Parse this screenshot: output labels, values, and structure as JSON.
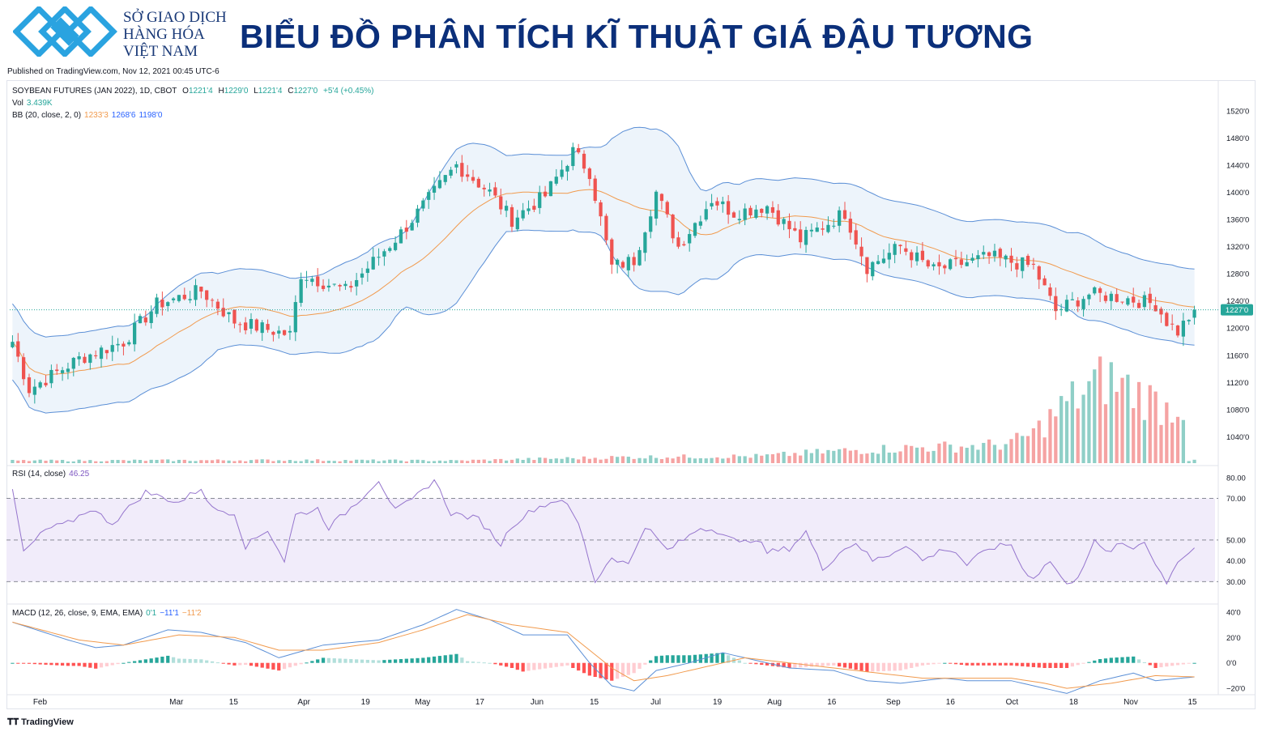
{
  "header": {
    "org_lines": "SỞ GIAO DỊCH\nHÀNG HÓA\nVIỆT NAM",
    "title": "BIỂU ĐỒ PHÂN TÍCH KĨ THUẬT GIÁ ĐẬU TƯƠNG",
    "published": "Published on TradingView.com, Nov 12, 2021 00:45 UTC-6"
  },
  "legend": {
    "symbol": "SOYBEAN FUTURES (JAN 2022), 1D, CBOT",
    "o_label": "O",
    "o_value": "1221'4",
    "h_label": "H",
    "h_value": "1229'0",
    "l_label": "L",
    "l_value": "1221'4",
    "c_label": "C",
    "c_value": "1227'0",
    "change": "+5'4 (+0.45%)",
    "vol_label": "Vol",
    "vol_value": "3.439K",
    "bb_label": "BB (20, close, 2, 0)",
    "bb_basis": "1233'3",
    "bb_upper": "1268'6",
    "bb_lower": "1198'0",
    "rsi_label": "RSI (14, close)",
    "rsi_value": "46.25",
    "macd_label": "MACD (12, 26, close, 9, EMA, EMA)",
    "macd_hist": "0'1",
    "macd_line": "−11'1",
    "macd_signal": "−11'2"
  },
  "footer": {
    "brand": "TradingView",
    "icon": "tradingview-logo-icon"
  },
  "colors": {
    "up": "#26a69a",
    "down": "#ef5350",
    "vol_up": "#8fcfc7",
    "vol_down": "#f5a3a3",
    "bb_band": "#5b8fd6",
    "bb_basis": "#f19a4d",
    "bb_fill": "#edf4fb",
    "rsi": "#9575cd",
    "rsi_fill": "#f1ecfa",
    "macd": "#5b8fd6",
    "signal": "#f19a4d",
    "title": "#0b2f7a",
    "logo": "#2aa3e0"
  },
  "chart_data": {
    "type": "candlestick",
    "symbol": "SOYBEAN FUTURES (JAN 2022)",
    "timeframe": "1D",
    "exchange": "CBOT",
    "x_tick_labels": [
      "Feb",
      "Mar",
      "15",
      "Apr",
      "19",
      "May",
      "17",
      "Jun",
      "15",
      "Jul",
      "19",
      "Aug",
      "16",
      "Sep",
      "16",
      "Oct",
      "18",
      "Nov",
      "15"
    ],
    "price_axis": {
      "range": [
        1000,
        1540
      ],
      "ticks": [
        1520,
        1480,
        1440,
        1400,
        1360,
        1320,
        1280,
        1240,
        1200,
        1160,
        1120,
        1080,
        1040
      ],
      "tick_labels": [
        "1520'0",
        "1480'0",
        "1440'0",
        "1400'0",
        "1360'0",
        "1320'0",
        "1280'0",
        "1240'0",
        "1200'0",
        "1160'0",
        "1120'0",
        "1080'0",
        "1040'0"
      ],
      "last_price": 1227,
      "last_price_label": "1227'0"
    },
    "price_keypoints": [
      [
        0,
        1180
      ],
      [
        3,
        1110
      ],
      [
        12,
        1155
      ],
      [
        20,
        1180
      ],
      [
        26,
        1235
      ],
      [
        34,
        1255
      ],
      [
        40,
        1210
      ],
      [
        50,
        1190
      ],
      [
        52,
        1280
      ],
      [
        60,
        1255
      ],
      [
        70,
        1340
      ],
      [
        80,
        1440
      ],
      [
        86,
        1400
      ],
      [
        90,
        1360
      ],
      [
        96,
        1395
      ],
      [
        101,
        1460
      ],
      [
        104,
        1430
      ],
      [
        108,
        1290
      ],
      [
        112,
        1300
      ],
      [
        116,
        1400
      ],
      [
        120,
        1320
      ],
      [
        126,
        1390
      ],
      [
        130,
        1370
      ],
      [
        136,
        1380
      ],
      [
        142,
        1330
      ],
      [
        150,
        1370
      ],
      [
        154,
        1290
      ],
      [
        160,
        1320
      ],
      [
        166,
        1285
      ],
      [
        176,
        1305
      ],
      [
        184,
        1290
      ],
      [
        188,
        1225
      ],
      [
        194,
        1250
      ],
      [
        200,
        1245
      ],
      [
        206,
        1235
      ],
      [
        208,
        1210
      ],
      [
        210,
        1195
      ],
      [
        213,
        1227
      ]
    ],
    "volume_keypoints": [
      [
        0,
        5000
      ],
      [
        50,
        6000
      ],
      [
        80,
        5000
      ],
      [
        110,
        12000
      ],
      [
        135,
        14000
      ],
      [
        150,
        25000
      ],
      [
        160,
        30000
      ],
      [
        175,
        35000
      ],
      [
        180,
        40000
      ],
      [
        184,
        60000
      ],
      [
        190,
        120000
      ],
      [
        197,
        170000
      ],
      [
        203,
        140000
      ],
      [
        208,
        110000
      ],
      [
        211,
        120000
      ],
      [
        212,
        5000
      ]
    ],
    "rsi": {
      "range": [
        20,
        85
      ],
      "ticks": [
        80,
        70,
        50,
        40,
        30
      ],
      "tick_labels": [
        "80.00",
        "70.00",
        "50.00",
        "40.00",
        "30.00"
      ],
      "levels": [
        70,
        50,
        30
      ],
      "last": 46.25,
      "keypoints": [
        [
          0,
          74
        ],
        [
          2,
          44
        ],
        [
          6,
          55
        ],
        [
          10,
          58
        ],
        [
          14,
          65
        ],
        [
          18,
          58
        ],
        [
          24,
          73
        ],
        [
          30,
          68
        ],
        [
          34,
          75
        ],
        [
          36,
          65
        ],
        [
          40,
          63
        ],
        [
          42,
          47
        ],
        [
          46,
          55
        ],
        [
          49,
          40
        ],
        [
          51,
          62
        ],
        [
          55,
          65
        ],
        [
          57,
          56
        ],
        [
          62,
          68
        ],
        [
          66,
          79
        ],
        [
          69,
          64
        ],
        [
          72,
          69
        ],
        [
          76,
          79
        ],
        [
          79,
          63
        ],
        [
          84,
          60
        ],
        [
          88,
          48
        ],
        [
          90,
          57
        ],
        [
          94,
          65
        ],
        [
          99,
          70
        ],
        [
          102,
          58
        ],
        [
          105,
          30
        ],
        [
          108,
          42
        ],
        [
          111,
          38
        ],
        [
          114,
          57
        ],
        [
          118,
          45
        ],
        [
          122,
          52
        ],
        [
          124,
          56
        ],
        [
          128,
          54
        ],
        [
          131,
          48
        ],
        [
          134,
          51
        ],
        [
          136,
          44
        ],
        [
          140,
          46
        ],
        [
          143,
          54
        ],
        [
          146,
          36
        ],
        [
          149,
          44
        ],
        [
          152,
          49
        ],
        [
          155,
          40
        ],
        [
          158,
          43
        ],
        [
          161,
          48
        ],
        [
          164,
          40
        ],
        [
          168,
          46
        ],
        [
          170,
          44
        ],
        [
          172,
          38
        ],
        [
          176,
          46
        ],
        [
          180,
          48
        ],
        [
          182,
          36
        ],
        [
          184,
          32
        ],
        [
          187,
          40
        ],
        [
          190,
          28
        ],
        [
          192,
          33
        ],
        [
          195,
          49
        ],
        [
          197,
          44
        ],
        [
          200,
          48
        ],
        [
          202,
          46
        ],
        [
          204,
          50
        ],
        [
          206,
          38
        ],
        [
          208,
          30
        ],
        [
          210,
          40
        ],
        [
          213,
          46
        ]
      ]
    },
    "macd": {
      "range": [
        -25,
        45
      ],
      "ticks": [
        40,
        20,
        0,
        -20
      ],
      "tick_labels": [
        "40'0",
        "20'0",
        "0'0",
        "−20'0"
      ],
      "line_keypoints": [
        [
          0,
          32
        ],
        [
          10,
          18
        ],
        [
          15,
          12
        ],
        [
          20,
          14
        ],
        [
          28,
          26
        ],
        [
          34,
          24
        ],
        [
          42,
          16
        ],
        [
          48,
          4
        ],
        [
          56,
          14
        ],
        [
          66,
          18
        ],
        [
          74,
          30
        ],
        [
          80,
          42
        ],
        [
          86,
          34
        ],
        [
          92,
          22
        ],
        [
          100,
          22
        ],
        [
          104,
          0
        ],
        [
          108,
          -18
        ],
        [
          112,
          -22
        ],
        [
          116,
          -6
        ],
        [
          122,
          0
        ],
        [
          128,
          8
        ],
        [
          134,
          2
        ],
        [
          140,
          -4
        ],
        [
          148,
          -6
        ],
        [
          154,
          -14
        ],
        [
          160,
          -16
        ],
        [
          168,
          -12
        ],
        [
          172,
          -14
        ],
        [
          180,
          -14
        ],
        [
          186,
          -20
        ],
        [
          190,
          -24
        ],
        [
          196,
          -14
        ],
        [
          202,
          -8
        ],
        [
          206,
          -14
        ],
        [
          213,
          -11
        ]
      ],
      "signal_keypoints": [
        [
          0,
          32
        ],
        [
          12,
          18
        ],
        [
          20,
          14
        ],
        [
          30,
          22
        ],
        [
          40,
          20
        ],
        [
          48,
          10
        ],
        [
          56,
          10
        ],
        [
          66,
          16
        ],
        [
          74,
          26
        ],
        [
          82,
          38
        ],
        [
          90,
          30
        ],
        [
          100,
          24
        ],
        [
          104,
          10
        ],
        [
          108,
          -4
        ],
        [
          112,
          -14
        ],
        [
          118,
          -10
        ],
        [
          126,
          -2
        ],
        [
          132,
          4
        ],
        [
          140,
          0
        ],
        [
          148,
          -4
        ],
        [
          156,
          -8
        ],
        [
          164,
          -12
        ],
        [
          172,
          -12
        ],
        [
          180,
          -12
        ],
        [
          186,
          -16
        ],
        [
          190,
          -20
        ],
        [
          198,
          -16
        ],
        [
          206,
          -10
        ],
        [
          213,
          -11
        ]
      ]
    }
  }
}
